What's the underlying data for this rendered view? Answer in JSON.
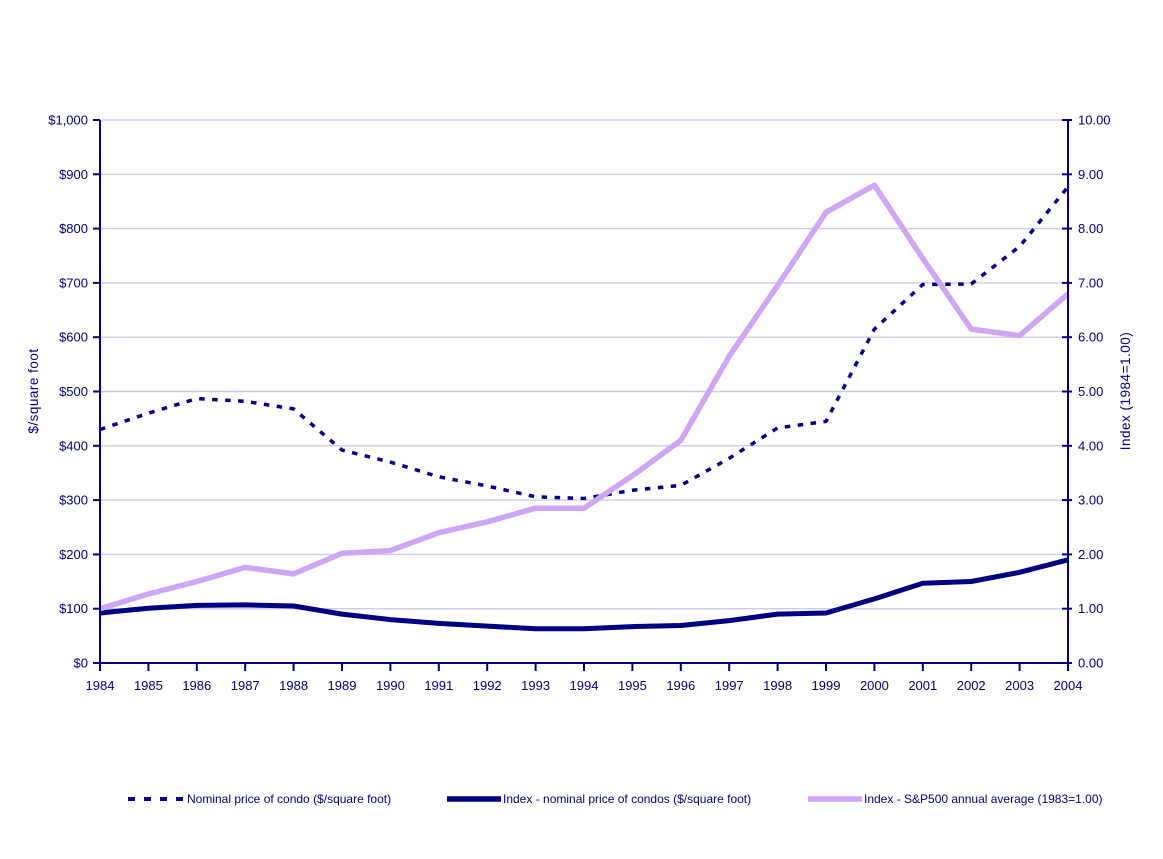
{
  "chart_data": {
    "type": "line",
    "title": "",
    "x_categories": [
      "1984",
      "1985",
      "1986",
      "1987",
      "1988",
      "1989",
      "1990",
      "1991",
      "1992",
      "1993",
      "1994",
      "1995",
      "1996",
      "1997",
      "1998",
      "1999",
      "2000",
      "2001",
      "2002",
      "2003",
      "2004"
    ],
    "left_axis": {
      "title": "$/square foot",
      "min": 0,
      "max": 1000,
      "tick_step": 100,
      "tick_labels": [
        "$0",
        "$100",
        "$200",
        "$300",
        "$400",
        "$500",
        "$600",
        "$700",
        "$800",
        "$900",
        "$1,000"
      ]
    },
    "right_axis": {
      "title": "Index (1984=1.00)",
      "min": 0,
      "max": 10,
      "tick_step": 1,
      "tick_labels": [
        "0.00",
        "1.00",
        "2.00",
        "3.00",
        "4.00",
        "5.00",
        "6.00",
        "7.00",
        "8.00",
        "9.00",
        "10.00"
      ]
    },
    "grid": "horizontal",
    "legend_position": "bottom",
    "series": [
      {
        "name": "Nominal price of condo ($/square foot)",
        "axis": "left",
        "style": "dotted",
        "color": "#000080",
        "values": [
          430,
          460,
          487,
          482,
          468,
          392,
          370,
          343,
          326,
          306,
          303,
          318,
          327,
          377,
          433,
          445,
          615,
          697,
          698,
          767,
          877
        ]
      },
      {
        "name": "Index - nominal price of condos ($/square foot)",
        "axis": "right",
        "style": "solid",
        "color": "#000080",
        "values": [
          0.92,
          1.01,
          1.06,
          1.07,
          1.05,
          0.9,
          0.8,
          0.73,
          0.68,
          0.63,
          0.63,
          0.67,
          0.69,
          0.78,
          0.9,
          0.92,
          1.18,
          1.47,
          1.5,
          1.67,
          1.9
        ]
      },
      {
        "name": "Index - S&P500 annual average (1983=1.00)",
        "axis": "right",
        "style": "solid",
        "color": "#CFA6F3",
        "values": [
          1.0,
          1.27,
          1.5,
          1.76,
          1.64,
          2.02,
          2.07,
          2.4,
          2.6,
          2.85,
          2.85,
          3.45,
          4.1,
          5.65,
          6.95,
          8.3,
          8.8,
          7.45,
          6.15,
          6.03,
          6.8
        ]
      }
    ],
    "colors": {
      "axis": "#000080",
      "text": "#000080",
      "gridline": "#CCCCEC",
      "background": "#FFFFFF"
    }
  }
}
